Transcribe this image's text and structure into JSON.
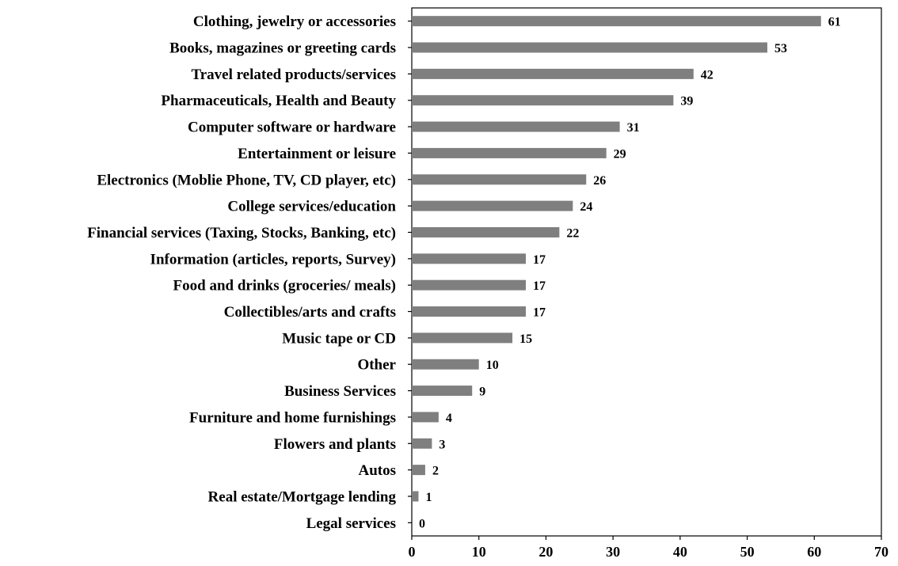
{
  "chart_data": {
    "type": "bar",
    "orientation": "horizontal",
    "categories": [
      "Clothing, jewelry or accessories",
      "Books, magazines or greeting cards",
      "Travel related products/services",
      "Pharmaceuticals, Health and Beauty",
      "Computer software or hardware",
      "Entertainment or leisure",
      "Electronics (Moblie Phone, TV, CD player, etc)",
      "College services/education",
      "Financial services (Taxing, Stocks, Banking, etc)",
      "Information (articles, reports, Survey)",
      "Food and drinks (groceries/ meals)",
      "Collectibles/arts and crafts",
      "Music tape or CD",
      "Other",
      "Business Services",
      "Furniture and home furnishings",
      "Flowers and plants",
      "Autos",
      "Real estate/Mortgage lending",
      "Legal services"
    ],
    "values": [
      61,
      53,
      42,
      39,
      31,
      29,
      26,
      24,
      22,
      17,
      17,
      17,
      15,
      10,
      9,
      4,
      3,
      2,
      1,
      0
    ],
    "xlim": [
      0,
      70
    ],
    "xticks": [
      0,
      10,
      20,
      30,
      40,
      50,
      60,
      70
    ],
    "title": "",
    "xlabel": "",
    "ylabel": "",
    "grid": false,
    "bar_color": "#7f7f7f",
    "data_labels": true
  }
}
